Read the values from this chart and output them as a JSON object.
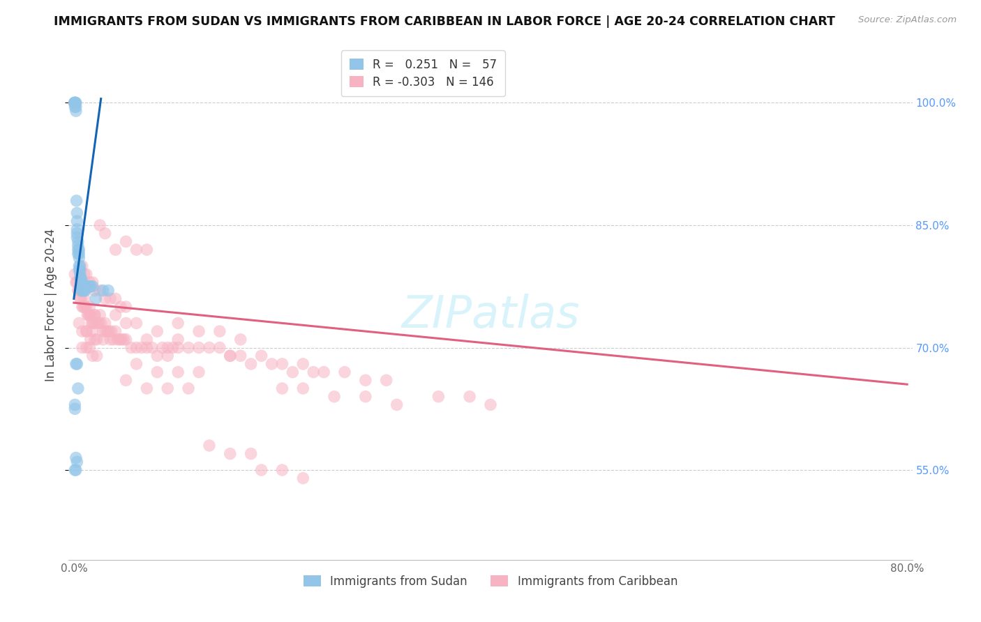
{
  "title": "IMMIGRANTS FROM SUDAN VS IMMIGRANTS FROM CARIBBEAN IN LABOR FORCE | AGE 20-24 CORRELATION CHART",
  "source": "Source: ZipAtlas.com",
  "ylabel": "In Labor Force | Age 20-24",
  "xlim": [
    -0.005,
    0.805
  ],
  "ylim": [
    0.44,
    1.065
  ],
  "right_yticks": [
    0.55,
    0.7,
    0.85,
    1.0
  ],
  "right_yticklabels": [
    "55.0%",
    "70.0%",
    "85.0%",
    "100.0%"
  ],
  "legend_R_sudan": "0.251",
  "legend_N_sudan": "57",
  "legend_R_caribbean": "-0.303",
  "legend_N_caribbean": "146",
  "sudan_color": "#92c5e8",
  "caribbean_color": "#f7b3c2",
  "trend_sudan_color": "#1464b4",
  "trend_caribbean_color": "#e06080",
  "sudan_points_x": [
    0.0005,
    0.0005,
    0.001,
    0.001,
    0.001,
    0.001,
    0.0015,
    0.002,
    0.002,
    0.002,
    0.0025,
    0.003,
    0.003,
    0.003,
    0.003,
    0.003,
    0.004,
    0.004,
    0.004,
    0.004,
    0.005,
    0.005,
    0.005,
    0.005,
    0.005,
    0.006,
    0.006,
    0.006,
    0.006,
    0.007,
    0.007,
    0.007,
    0.007,
    0.008,
    0.008,
    0.008,
    0.009,
    0.009,
    0.01,
    0.01,
    0.011,
    0.012,
    0.015,
    0.016,
    0.018,
    0.002,
    0.003,
    0.004,
    0.001,
    0.001,
    0.002,
    0.003,
    0.021,
    0.028,
    0.033,
    0.001,
    0.002
  ],
  "sudan_points_y": [
    1.0,
    1.0,
    1.0,
    1.0,
    1.0,
    0.995,
    1.0,
    1.0,
    0.995,
    0.99,
    0.88,
    0.865,
    0.855,
    0.845,
    0.84,
    0.835,
    0.83,
    0.825,
    0.82,
    0.815,
    0.82,
    0.815,
    0.81,
    0.8,
    0.795,
    0.8,
    0.795,
    0.79,
    0.785,
    0.785,
    0.78,
    0.775,
    0.77,
    0.78,
    0.775,
    0.77,
    0.775,
    0.77,
    0.775,
    0.77,
    0.77,
    0.775,
    0.775,
    0.775,
    0.775,
    0.68,
    0.68,
    0.65,
    0.63,
    0.625,
    0.565,
    0.56,
    0.76,
    0.77,
    0.77,
    0.55,
    0.55
  ],
  "carib_points_x": [
    0.001,
    0.002,
    0.003,
    0.004,
    0.005,
    0.006,
    0.007,
    0.008,
    0.009,
    0.01,
    0.011,
    0.012,
    0.013,
    0.014,
    0.015,
    0.016,
    0.017,
    0.018,
    0.019,
    0.02,
    0.022,
    0.024,
    0.026,
    0.028,
    0.03,
    0.032,
    0.034,
    0.036,
    0.038,
    0.04,
    0.042,
    0.044,
    0.046,
    0.048,
    0.05,
    0.055,
    0.06,
    0.065,
    0.07,
    0.075,
    0.08,
    0.085,
    0.09,
    0.095,
    0.1,
    0.008,
    0.01,
    0.012,
    0.015,
    0.018,
    0.02,
    0.025,
    0.03,
    0.035,
    0.04,
    0.045,
    0.05,
    0.025,
    0.03,
    0.04,
    0.05,
    0.06,
    0.07,
    0.01,
    0.015,
    0.02,
    0.025,
    0.03,
    0.012,
    0.018,
    0.022,
    0.028,
    0.035,
    0.005,
    0.008,
    0.012,
    0.016,
    0.02,
    0.008,
    0.012,
    0.015,
    0.018,
    0.022,
    0.04,
    0.05,
    0.06,
    0.08,
    0.1,
    0.12,
    0.14,
    0.16,
    0.18,
    0.2,
    0.22,
    0.24,
    0.26,
    0.28,
    0.3,
    0.15,
    0.17,
    0.19,
    0.21,
    0.23,
    0.07,
    0.09,
    0.11,
    0.13,
    0.15,
    0.1,
    0.12,
    0.14,
    0.16,
    0.06,
    0.08,
    0.1,
    0.12,
    0.05,
    0.07,
    0.09,
    0.11,
    0.2,
    0.22,
    0.25,
    0.28,
    0.31,
    0.18,
    0.2,
    0.22,
    0.13,
    0.15,
    0.17,
    0.35,
    0.38,
    0.4
  ],
  "carib_points_y": [
    0.79,
    0.78,
    0.78,
    0.77,
    0.77,
    0.76,
    0.76,
    0.75,
    0.75,
    0.76,
    0.75,
    0.75,
    0.74,
    0.74,
    0.74,
    0.74,
    0.73,
    0.73,
    0.73,
    0.74,
    0.73,
    0.73,
    0.73,
    0.72,
    0.72,
    0.72,
    0.72,
    0.72,
    0.71,
    0.72,
    0.71,
    0.71,
    0.71,
    0.71,
    0.71,
    0.7,
    0.7,
    0.7,
    0.7,
    0.7,
    0.69,
    0.7,
    0.69,
    0.7,
    0.7,
    0.8,
    0.79,
    0.79,
    0.78,
    0.78,
    0.77,
    0.77,
    0.76,
    0.76,
    0.76,
    0.75,
    0.75,
    0.85,
    0.84,
    0.82,
    0.83,
    0.82,
    0.82,
    0.75,
    0.75,
    0.74,
    0.74,
    0.73,
    0.72,
    0.72,
    0.71,
    0.71,
    0.71,
    0.73,
    0.72,
    0.72,
    0.71,
    0.71,
    0.7,
    0.7,
    0.7,
    0.69,
    0.69,
    0.74,
    0.73,
    0.73,
    0.72,
    0.71,
    0.7,
    0.7,
    0.69,
    0.69,
    0.68,
    0.68,
    0.67,
    0.67,
    0.66,
    0.66,
    0.69,
    0.68,
    0.68,
    0.67,
    0.67,
    0.71,
    0.7,
    0.7,
    0.7,
    0.69,
    0.73,
    0.72,
    0.72,
    0.71,
    0.68,
    0.67,
    0.67,
    0.67,
    0.66,
    0.65,
    0.65,
    0.65,
    0.65,
    0.65,
    0.64,
    0.64,
    0.63,
    0.55,
    0.55,
    0.54,
    0.58,
    0.57,
    0.57,
    0.64,
    0.64,
    0.63
  ]
}
